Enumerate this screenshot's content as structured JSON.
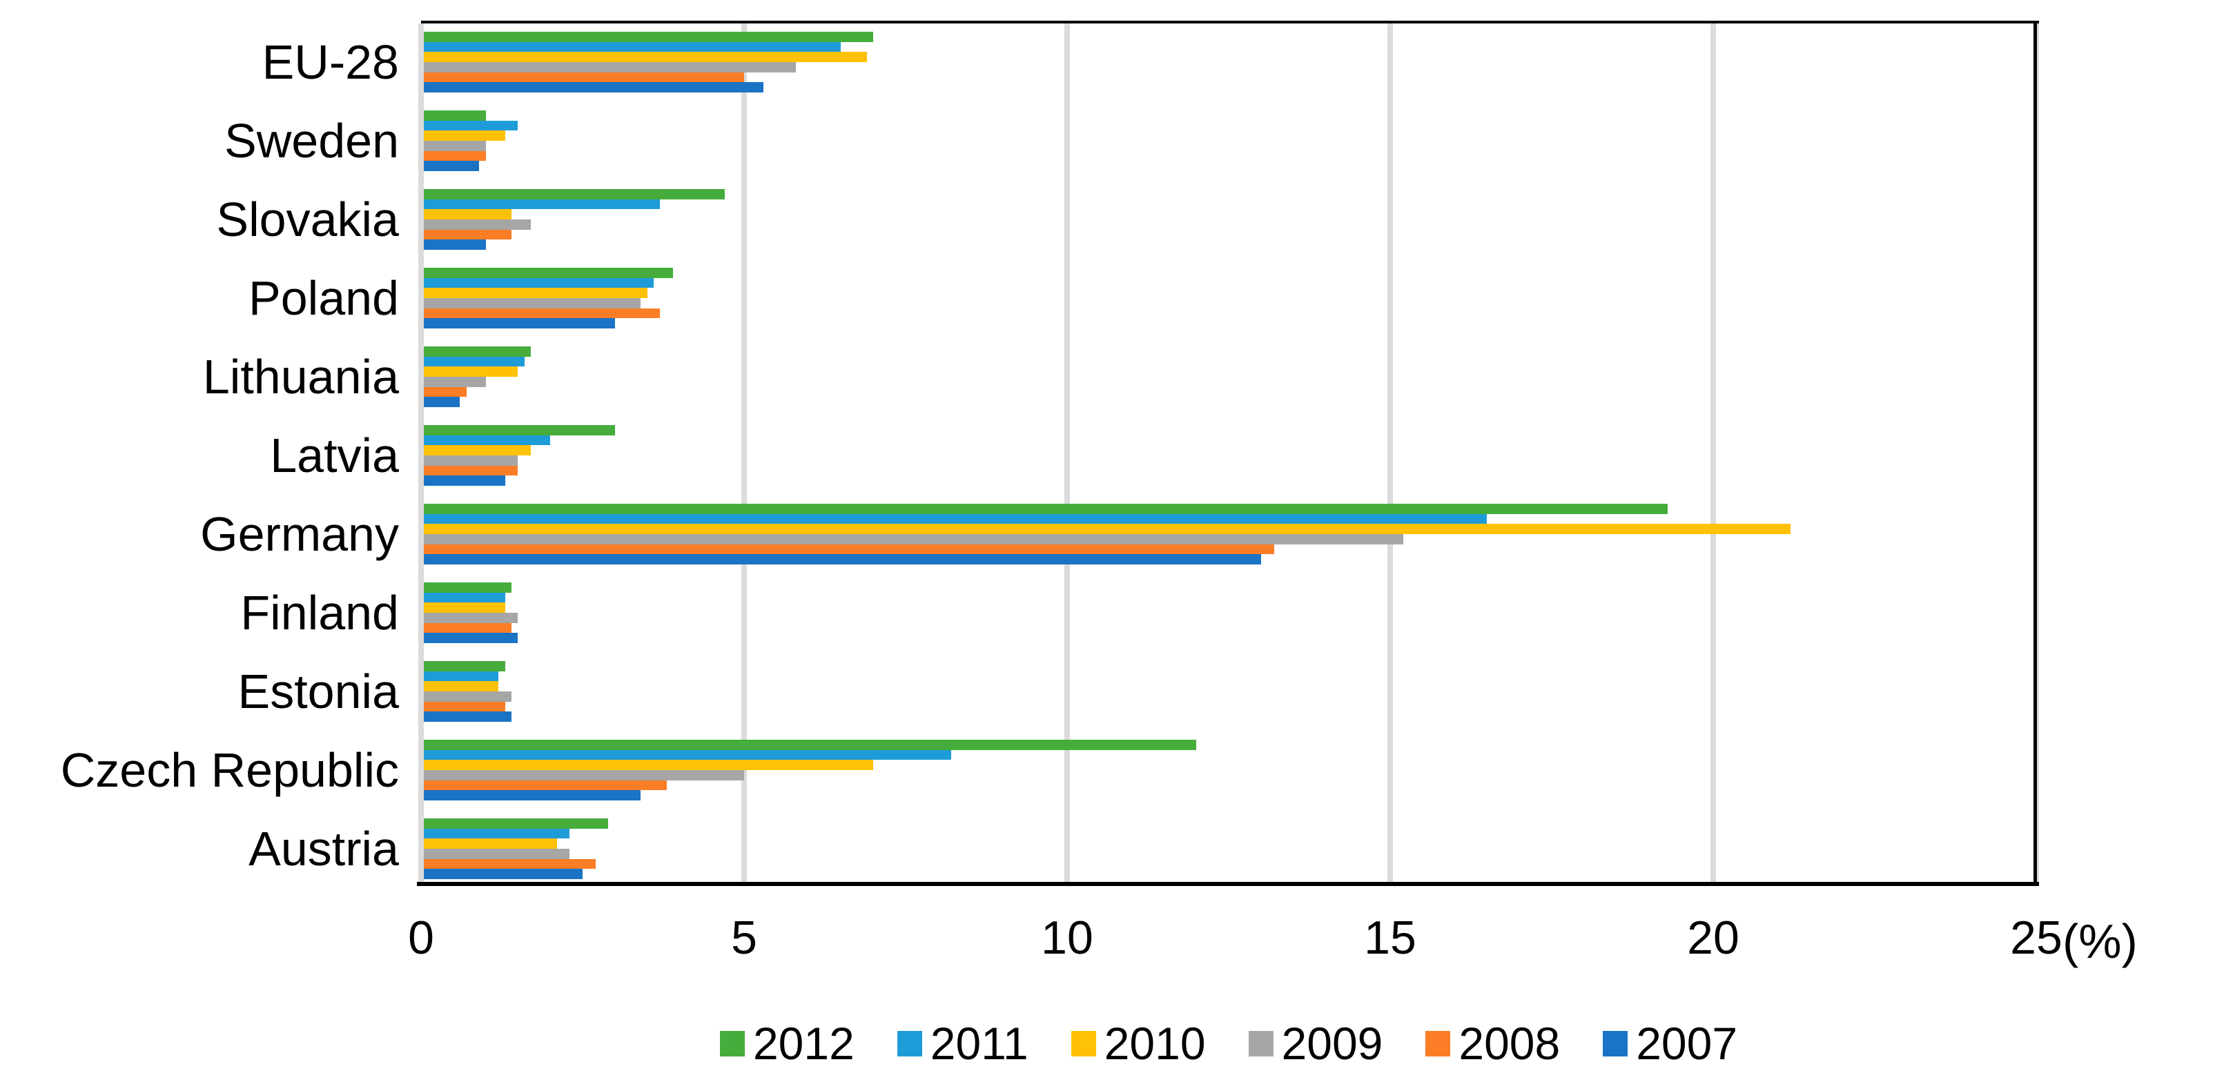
{
  "chart_data": {
    "type": "bar",
    "orientation": "horizontal",
    "title": "",
    "xlabel_unit": "(%)",
    "xlim": [
      0,
      25
    ],
    "x_ticks": [
      0,
      5,
      10,
      15,
      20,
      25
    ],
    "grid": "vertical",
    "legend_position": "bottom",
    "categories": [
      "EU-28",
      "Sweden",
      "Slovakia",
      "Poland",
      "Lithuania",
      "Latvia",
      "Germany",
      "Finland",
      "Estonia",
      "Czech Republic",
      "Austria"
    ],
    "series": [
      {
        "name": "2012",
        "color": "#46AC3C",
        "values": [
          7.0,
          1.0,
          4.7,
          3.9,
          1.7,
          3.0,
          19.3,
          1.4,
          1.3,
          12.0,
          2.9
        ]
      },
      {
        "name": "2011",
        "color": "#1E9CD8",
        "values": [
          6.5,
          1.5,
          3.7,
          3.6,
          1.6,
          2.0,
          16.5,
          1.3,
          1.2,
          8.2,
          2.3
        ]
      },
      {
        "name": "2010",
        "color": "#FFC103",
        "values": [
          6.9,
          1.3,
          1.4,
          3.5,
          1.5,
          1.7,
          21.2,
          1.3,
          1.2,
          7.0,
          2.1
        ]
      },
      {
        "name": "2009",
        "color": "#A6A6A6",
        "values": [
          5.8,
          1.0,
          1.7,
          3.4,
          1.0,
          1.5,
          15.2,
          1.5,
          1.4,
          5.0,
          2.3
        ]
      },
      {
        "name": "2008",
        "color": "#FB7D26",
        "values": [
          5.0,
          1.0,
          1.4,
          3.7,
          0.7,
          1.5,
          13.2,
          1.4,
          1.3,
          3.8,
          2.7
        ]
      },
      {
        "name": "2007",
        "color": "#1B73C6",
        "values": [
          5.3,
          0.9,
          1.0,
          3.0,
          0.6,
          1.3,
          13.0,
          1.5,
          1.4,
          3.4,
          2.5
        ]
      }
    ]
  }
}
